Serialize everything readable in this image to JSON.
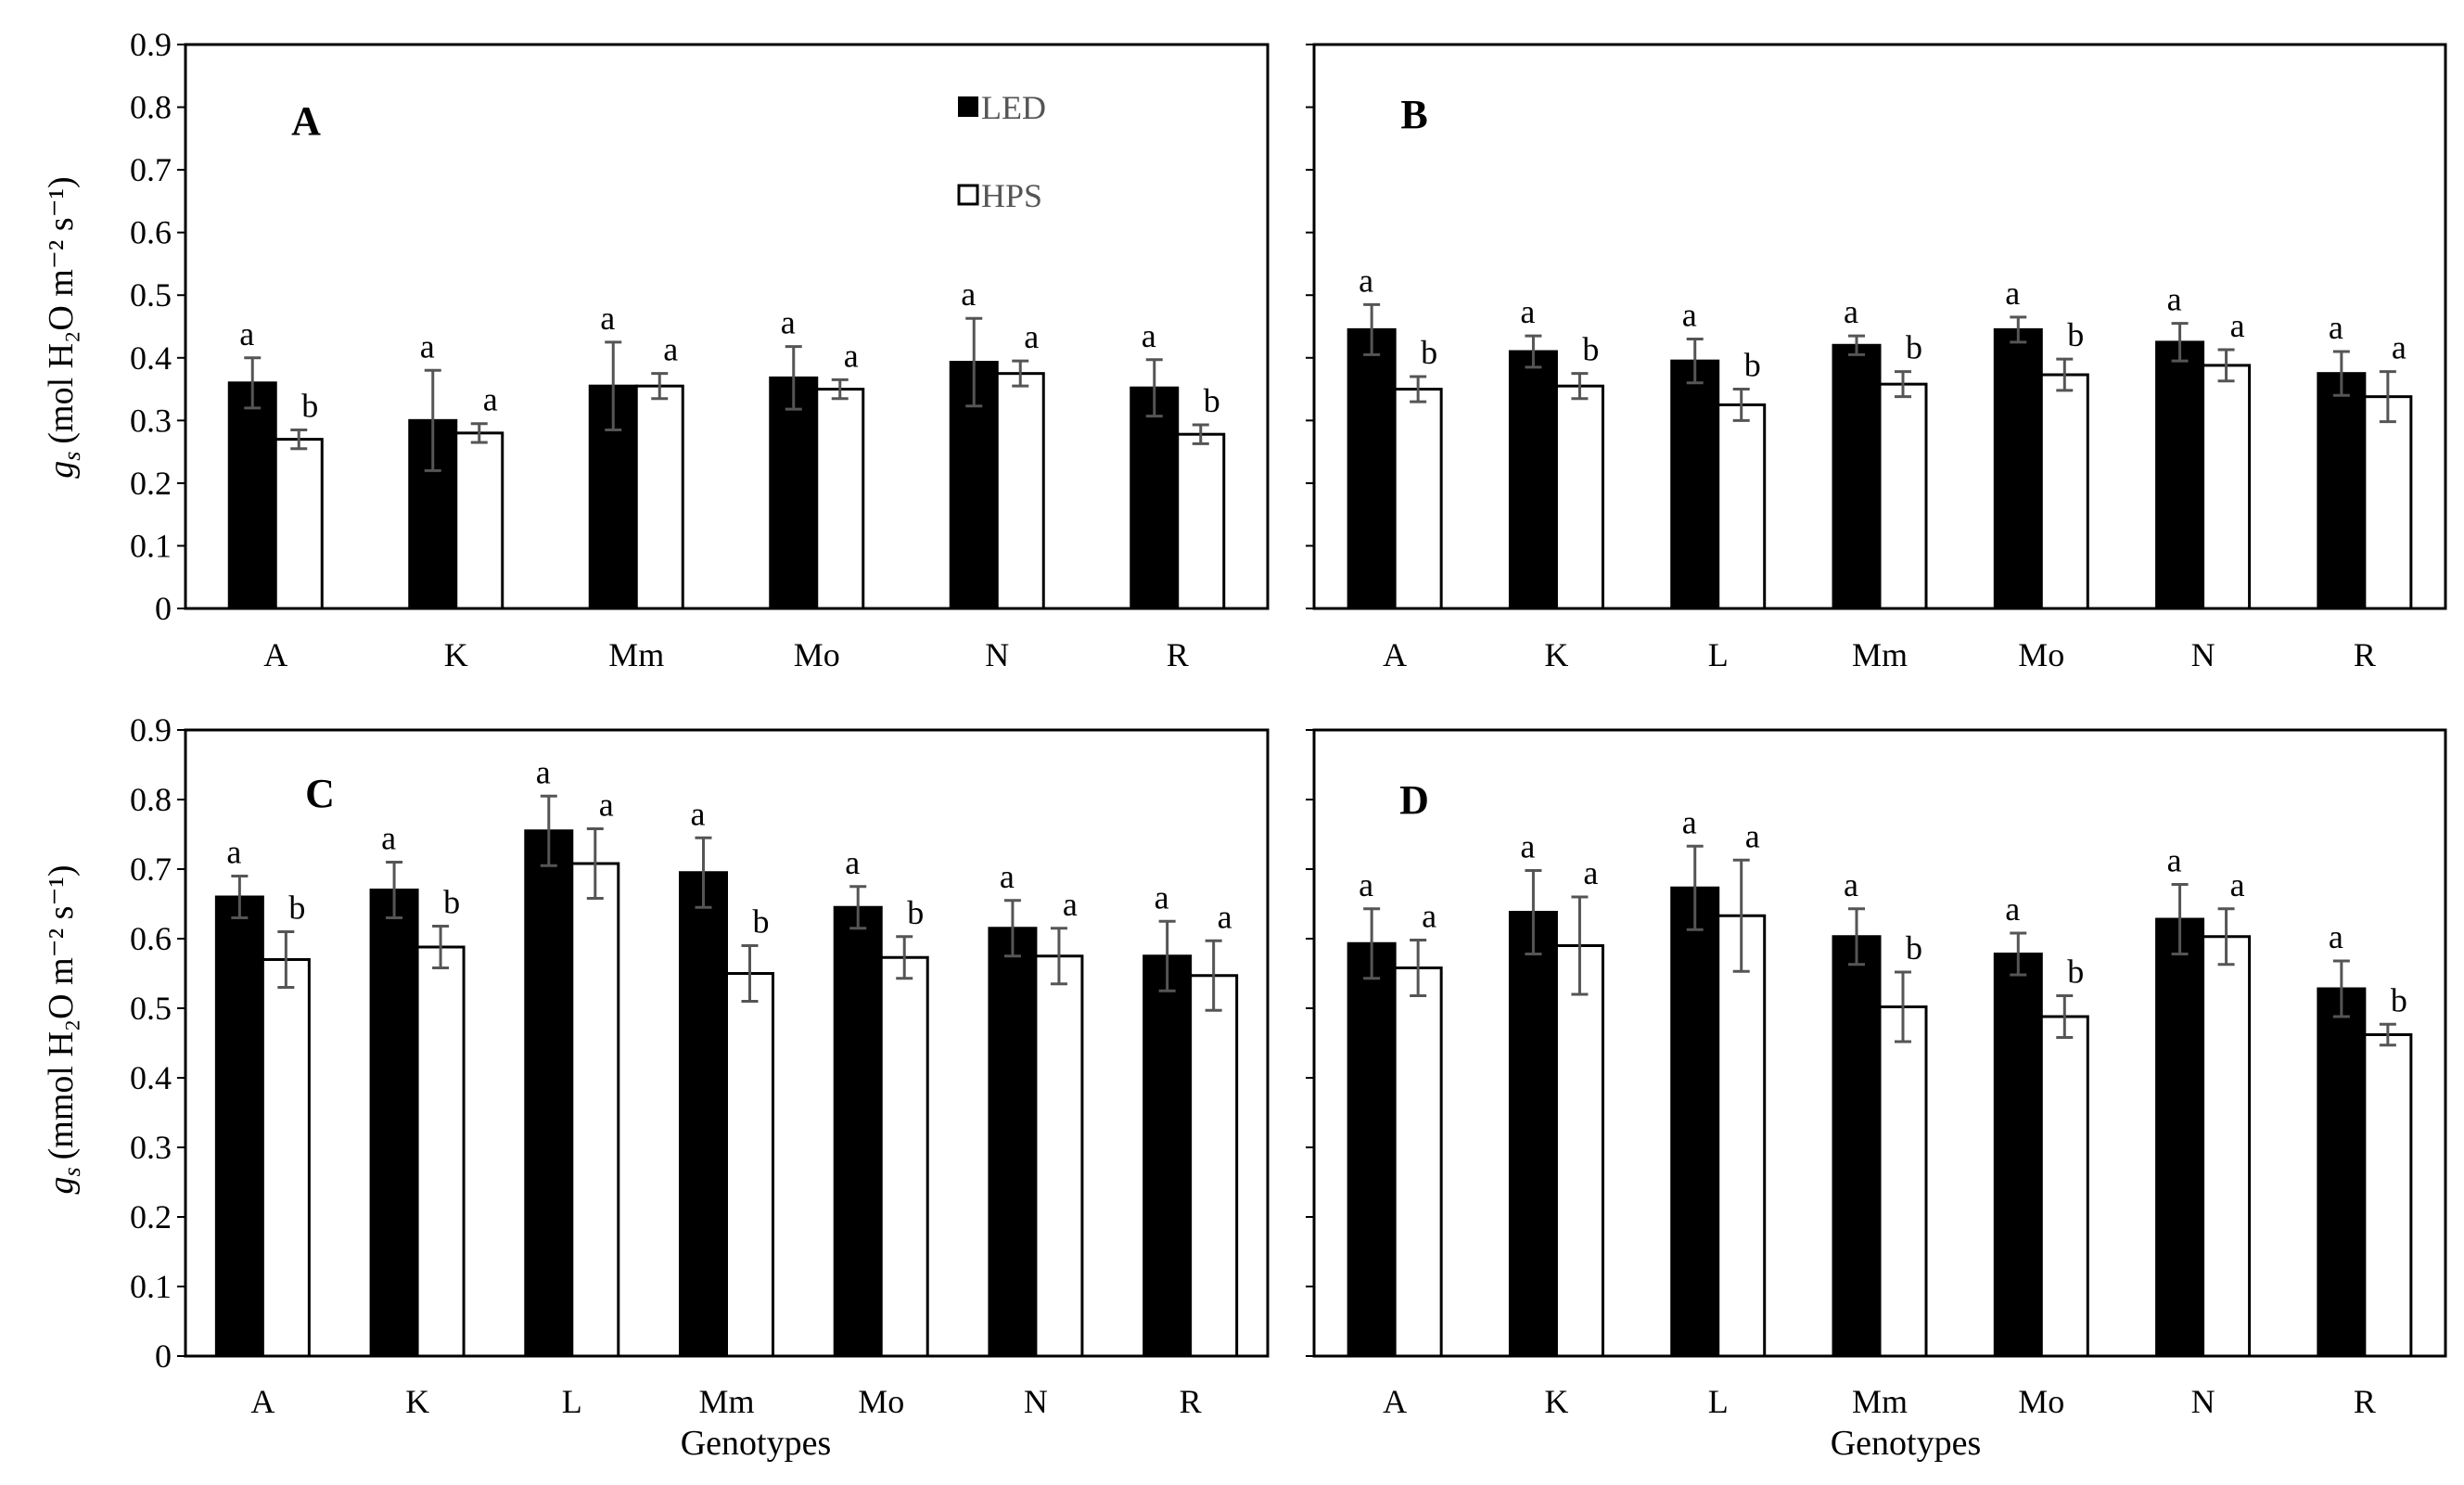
{
  "figure": {
    "ylabel_top": "(mol H₂O m⁻² s⁻¹)",
    "ylabel_bottom": "(mmol H₂O m⁻² s⁻¹)",
    "ylabel_symbol": "g",
    "ylabel_subscript": "s",
    "xlabel": "Genotypes",
    "legend": [
      {
        "name": "LED",
        "color": "#000000"
      },
      {
        "name": "HPS",
        "color": "#ffffff"
      }
    ]
  },
  "chart_data": [
    {
      "type": "bar",
      "panel_label": "A",
      "categories": [
        "A",
        "K",
        "Mm",
        "Mo",
        "N",
        "R"
      ],
      "ylim": [
        0,
        0.9
      ],
      "yticks": [
        "0",
        "0.1",
        "0.2",
        "0.3",
        "0.4",
        "0.5",
        "0.6",
        "0.7",
        "0.8",
        "0.9"
      ],
      "show_yticks": true,
      "ylabel": "g_s (mol H2O m-2 s-1)",
      "series": [
        {
          "name": "LED",
          "color": "#000000",
          "values": [
            0.36,
            0.3,
            0.355,
            0.368,
            0.393,
            0.352
          ],
          "errors": [
            0.04,
            0.08,
            0.07,
            0.05,
            0.07,
            0.045
          ],
          "letters": [
            "a",
            "a",
            "a",
            "a",
            "a",
            "a"
          ]
        },
        {
          "name": "HPS",
          "color": "#ffffff",
          "values": [
            0.27,
            0.28,
            0.355,
            0.35,
            0.375,
            0.278
          ],
          "errors": [
            0.015,
            0.015,
            0.02,
            0.015,
            0.02,
            0.015
          ],
          "letters": [
            "b",
            "a",
            "a",
            "a",
            "a",
            "b"
          ]
        }
      ]
    },
    {
      "type": "bar",
      "panel_label": "B",
      "categories": [
        "A",
        "K",
        "L",
        "Mm",
        "Mo",
        "N",
        "R"
      ],
      "ylim": [
        0,
        0.9
      ],
      "show_yticks": false,
      "series": [
        {
          "name": "LED",
          "color": "#000000",
          "values": [
            0.445,
            0.41,
            0.395,
            0.42,
            0.445,
            0.425,
            0.375
          ],
          "errors": [
            0.04,
            0.025,
            0.035,
            0.015,
            0.02,
            0.03,
            0.035
          ],
          "letters": [
            "a",
            "a",
            "a",
            "a",
            "a",
            "a",
            "a"
          ]
        },
        {
          "name": "HPS",
          "color": "#ffffff",
          "values": [
            0.35,
            0.355,
            0.325,
            0.358,
            0.373,
            0.388,
            0.338
          ],
          "errors": [
            0.02,
            0.02,
            0.025,
            0.02,
            0.025,
            0.025,
            0.04
          ],
          "letters": [
            "b",
            "b",
            "b",
            "b",
            "b",
            "a",
            "a"
          ]
        }
      ]
    },
    {
      "type": "bar",
      "panel_label": "C",
      "categories": [
        "A",
        "K",
        "L",
        "Mm",
        "Mo",
        "N",
        "R"
      ],
      "ylim": [
        0,
        0.9
      ],
      "yticks": [
        "0",
        "0.1",
        "0.2",
        "0.3",
        "0.4",
        "0.5",
        "0.6",
        "0.7",
        "0.8",
        "0.9"
      ],
      "show_yticks": true,
      "ylabel": "g_s (mmol H2O m-2 s-1)",
      "series": [
        {
          "name": "LED",
          "color": "#000000",
          "values": [
            0.66,
            0.67,
            0.755,
            0.695,
            0.645,
            0.615,
            0.575
          ],
          "errors": [
            0.03,
            0.04,
            0.05,
            0.05,
            0.03,
            0.04,
            0.05
          ],
          "letters": [
            "a",
            "a",
            "a",
            "a",
            "a",
            "a",
            "a"
          ]
        },
        {
          "name": "HPS",
          "color": "#ffffff",
          "values": [
            0.57,
            0.588,
            0.708,
            0.55,
            0.573,
            0.575,
            0.547
          ],
          "errors": [
            0.04,
            0.03,
            0.05,
            0.04,
            0.03,
            0.04,
            0.05
          ],
          "letters": [
            "b",
            "b",
            "a",
            "b",
            "b",
            "a",
            "a"
          ]
        }
      ]
    },
    {
      "type": "bar",
      "panel_label": "D",
      "categories": [
        "A",
        "K",
        "L",
        "Mm",
        "Mo",
        "N",
        "R"
      ],
      "ylim": [
        0,
        0.9
      ],
      "show_yticks": false,
      "series": [
        {
          "name": "LED",
          "color": "#000000",
          "values": [
            0.593,
            0.638,
            0.673,
            0.603,
            0.578,
            0.628,
            0.528
          ],
          "errors": [
            0.05,
            0.06,
            0.06,
            0.04,
            0.03,
            0.05,
            0.04
          ],
          "letters": [
            "a",
            "a",
            "a",
            "a",
            "a",
            "a",
            "a"
          ]
        },
        {
          "name": "HPS",
          "color": "#ffffff",
          "values": [
            0.558,
            0.59,
            0.633,
            0.502,
            0.488,
            0.603,
            0.462
          ],
          "errors": [
            0.04,
            0.07,
            0.08,
            0.05,
            0.03,
            0.04,
            0.015
          ],
          "letters": [
            "a",
            "a",
            "a",
            "b",
            "b",
            "a",
            "b"
          ]
        }
      ]
    }
  ]
}
